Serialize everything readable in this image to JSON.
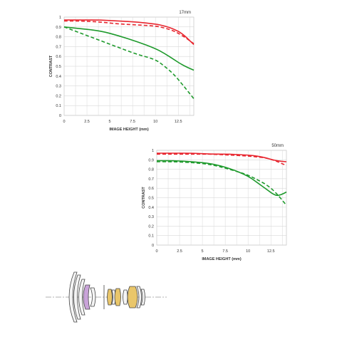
{
  "charts": [
    {
      "type": "line",
      "title": "17mm",
      "xlabel": "IMAGE HEIGHT (mm)",
      "ylabel": "CONTRAST",
      "xlim": [
        0,
        14.2
      ],
      "ylim": [
        0,
        1
      ],
      "x_ticks": [
        "0",
        "2.5",
        "5",
        "7.5",
        "10",
        "12.5"
      ],
      "x_tick_values": [
        0,
        2.5,
        5,
        7.5,
        10,
        12.5
      ],
      "y_ticks": [
        "0",
        "0.1",
        "0.2",
        "0.3",
        "0.4",
        "0.5",
        "0.6",
        "0.7",
        "0.8",
        "0.9",
        "1"
      ],
      "grid": true,
      "series": [
        {
          "color": "#e8262f",
          "dash": false,
          "x": [
            0,
            2,
            4,
            6,
            8,
            10,
            11,
            12,
            13,
            14.2
          ],
          "y": [
            0.97,
            0.97,
            0.97,
            0.96,
            0.95,
            0.93,
            0.91,
            0.88,
            0.83,
            0.72
          ]
        },
        {
          "color": "#e8262f",
          "dash": true,
          "x": [
            0,
            2,
            4,
            6,
            8,
            10,
            11,
            12,
            13,
            14.2
          ],
          "y": [
            0.96,
            0.96,
            0.95,
            0.93,
            0.92,
            0.91,
            0.89,
            0.86,
            0.81,
            0.73
          ]
        },
        {
          "color": "#1e9a2c",
          "dash": false,
          "x": [
            0,
            2,
            4,
            6,
            8,
            10,
            11,
            12,
            13,
            14.2
          ],
          "y": [
            0.9,
            0.88,
            0.86,
            0.81,
            0.75,
            0.68,
            0.63,
            0.57,
            0.51,
            0.46
          ]
        },
        {
          "color": "#1e9a2c",
          "dash": true,
          "x": [
            0,
            2,
            4,
            6,
            8,
            10,
            11,
            12,
            13,
            14.2
          ],
          "y": [
            0.9,
            0.83,
            0.76,
            0.69,
            0.62,
            0.57,
            0.5,
            0.42,
            0.31,
            0.17
          ]
        }
      ]
    },
    {
      "type": "line",
      "title": "50mm",
      "xlabel": "IMAGE HEIGHT (mm)",
      "ylabel": "CONTRAST",
      "xlim": [
        0,
        14.2
      ],
      "ylim": [
        0,
        1
      ],
      "x_ticks": [
        "0",
        "2.5",
        "5",
        "7.5",
        "10",
        "12.5"
      ],
      "x_tick_values": [
        0,
        2.5,
        5,
        7.5,
        10,
        12.5
      ],
      "y_ticks": [
        "0",
        "0.1",
        "0.2",
        "0.3",
        "0.4",
        "0.5",
        "0.6",
        "0.7",
        "0.8",
        "0.9",
        "1"
      ],
      "grid": true,
      "series": [
        {
          "color": "#e8262f",
          "dash": false,
          "x": [
            0,
            2,
            4,
            6,
            8,
            10,
            11,
            12,
            13,
            14.2
          ],
          "y": [
            0.97,
            0.97,
            0.97,
            0.96,
            0.96,
            0.95,
            0.94,
            0.92,
            0.89,
            0.88
          ]
        },
        {
          "color": "#e8262f",
          "dash": true,
          "x": [
            0,
            2,
            4,
            6,
            8,
            10,
            11,
            12,
            13,
            14.2
          ],
          "y": [
            0.96,
            0.96,
            0.96,
            0.96,
            0.95,
            0.94,
            0.93,
            0.92,
            0.89,
            0.84
          ]
        },
        {
          "color": "#1e9a2c",
          "dash": false,
          "x": [
            0,
            2,
            4,
            6,
            8,
            10,
            11,
            12,
            13,
            13.6,
            14.2
          ],
          "y": [
            0.89,
            0.89,
            0.88,
            0.86,
            0.81,
            0.73,
            0.66,
            0.59,
            0.52,
            0.53,
            0.56
          ]
        },
        {
          "color": "#1e9a2c",
          "dash": true,
          "x": [
            0,
            2,
            4,
            6,
            8,
            10,
            11,
            12,
            13,
            14.2
          ],
          "y": [
            0.88,
            0.88,
            0.87,
            0.85,
            0.8,
            0.74,
            0.69,
            0.64,
            0.56,
            0.42
          ]
        }
      ]
    }
  ]
}
